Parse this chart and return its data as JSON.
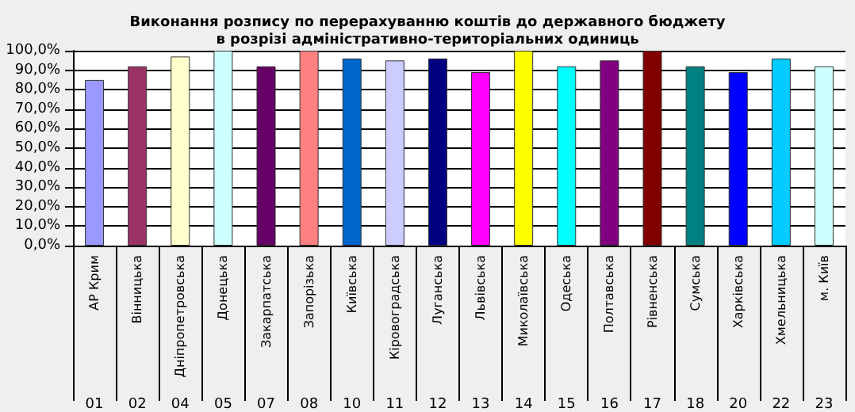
{
  "chart_data": {
    "type": "bar",
    "title": "Виконання розпису по перерахуванню коштів до державного бюджету\nв розрізі адміністративно-територіальних одиниць",
    "categories": [
      "АР Крим",
      "Вінницька",
      "Дніпропетровська",
      "Донецька",
      "Закарпатська",
      "Запорізька",
      "Київська",
      "Кіровоградська",
      "Луганська",
      "Львівська",
      "Миколаївська",
      "Одеська",
      "Полтавська",
      "Рівненська",
      "Сумська",
      "Харківська",
      "Хмельницька",
      "м. Київ"
    ],
    "values": [
      85,
      92,
      97,
      100,
      92,
      100,
      96,
      95,
      96,
      89,
      100,
      92,
      95,
      100,
      92,
      89,
      96,
      92
    ],
    "colors": [
      "#9999ff",
      "#993366",
      "#ffffcc",
      "#ccffff",
      "#660066",
      "#ff8080",
      "#0066cc",
      "#ccccff",
      "#000080",
      "#ff00ff",
      "#ffff00",
      "#00ffff",
      "#800080",
      "#800000",
      "#008080",
      "#0000ff",
      "#00ccff",
      "#ccffff"
    ],
    "ylim": [
      0,
      100
    ],
    "yticks": [
      {
        "value": 0,
        "label": "0,0%"
      },
      {
        "value": 10,
        "label": "10,0%"
      },
      {
        "value": 20,
        "label": "20,0%"
      },
      {
        "value": 30,
        "label": "30,0%"
      },
      {
        "value": 40,
        "label": "40,0%"
      },
      {
        "value": 50,
        "label": "50,0%"
      },
      {
        "value": 60,
        "label": "60,0%"
      },
      {
        "value": 70,
        "label": "70,0%"
      },
      {
        "value": 80,
        "label": "80,0%"
      },
      {
        "value": 90,
        "label": "90,0%"
      },
      {
        "value": 100,
        "label": "100,0%"
      }
    ],
    "grid": "y",
    "annotations": [
      "01",
      "02",
      "04",
      "05",
      "07",
      "08",
      "10",
      "11",
      "12",
      "13",
      "14",
      "15",
      "16",
      "17",
      "18",
      "20",
      "22",
      "23"
    ]
  }
}
